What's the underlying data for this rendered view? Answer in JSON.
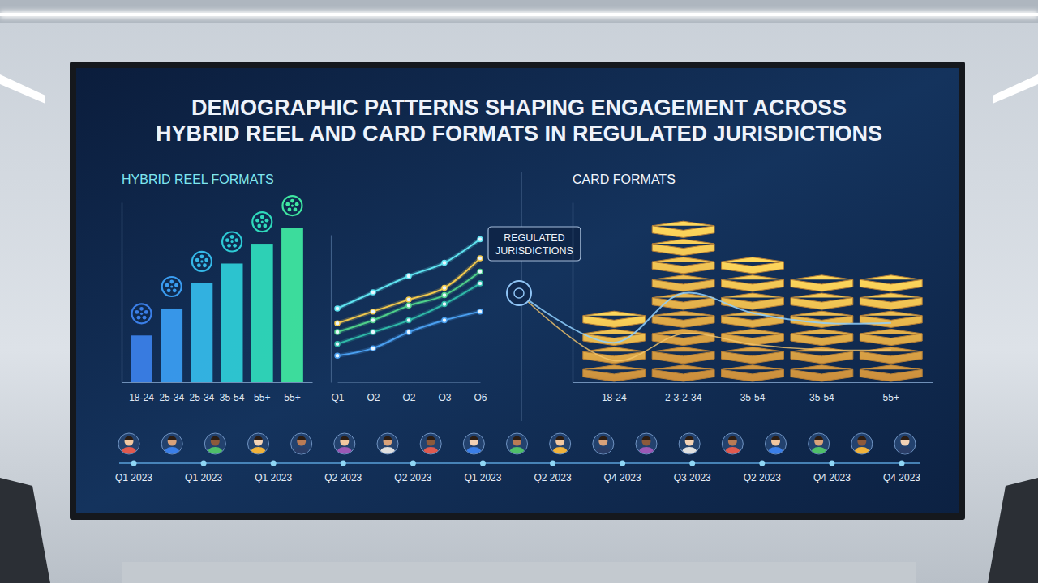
{
  "title": "DEMOGRAPHIC PATTERNS SHAPING ENGAGEMENT ACROSS HYBRID REEL AND CARD FORMATS IN REGULATED JURISDICTIONS",
  "chart_data": [
    {
      "type": "bar",
      "title": "HYBRID REEL FORMATS",
      "categories": [
        "18-24",
        "25-34",
        "25-34",
        "35-54",
        "55+",
        "55+"
      ],
      "values": [
        26,
        41,
        55,
        66,
        77,
        86
      ],
      "colors": [
        "#3b7fe8",
        "#3a9cf0",
        "#35b8e8",
        "#2ecbd6",
        "#2fd9bb",
        "#3fe6a0"
      ],
      "ylim": [
        0,
        100
      ],
      "tick_labels": "x"
    },
    {
      "type": "line",
      "annotations": [
        "REGULATED JURISDICTIONS"
      ],
      "categories": [
        "Q1",
        "O2",
        "O2",
        "O3",
        "O6"
      ],
      "series": [
        {
          "color": "#5fe3f0",
          "values": [
            50,
            61,
            72,
            81,
            97
          ]
        },
        {
          "color": "#f2c94c",
          "values": [
            40,
            48,
            56,
            64,
            84
          ]
        },
        {
          "color": "#4fd08a",
          "values": [
            34,
            42,
            52,
            59,
            75
          ]
        },
        {
          "color": "#2fb9a8",
          "values": [
            26,
            34,
            42,
            53,
            67
          ]
        },
        {
          "color": "#4a9ff0",
          "values": [
            18,
            23,
            34,
            42,
            48
          ]
        }
      ],
      "ylim": [
        0,
        100
      ],
      "marker": "circle",
      "tick_labels": "x"
    },
    {
      "type": "bar",
      "title": "CARD FORMATS",
      "categories": [
        "18-24",
        "2-3-2-34",
        "35-54",
        "35-54",
        "55+"
      ],
      "values": [
        4,
        9,
        7,
        6,
        6
      ],
      "color": "#f2a948",
      "ylim": [
        0,
        10
      ],
      "tick_labels": "x"
    },
    {
      "type": "timeline",
      "categories": [
        "Q1 2023",
        "Q1 2023",
        "Q1 2023",
        "Q2 2023",
        "Q2 2023",
        "Q1 2023",
        "Q2 2023",
        "Q4 2023",
        "Q3 2023",
        "Q2 2023",
        "Q4 2023",
        "Q4 2023"
      ]
    }
  ]
}
